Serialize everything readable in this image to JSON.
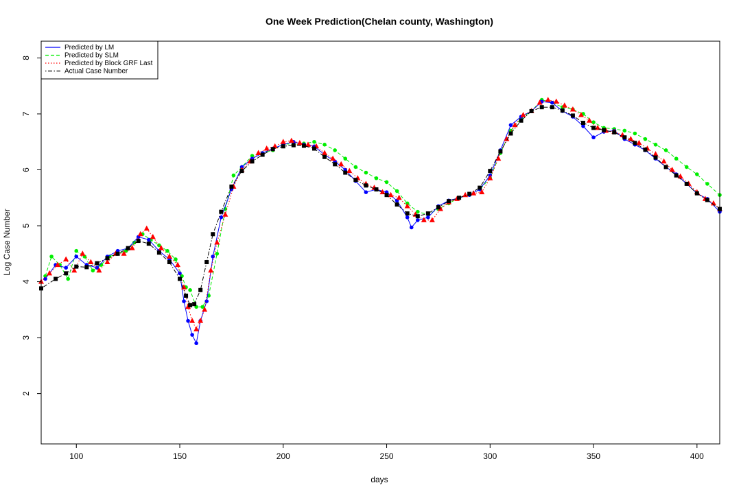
{
  "chart_data": {
    "type": "line",
    "title": "One Week Prediction(Chelan county, Washington)",
    "xlabel": "days",
    "ylabel": "Log Case Number",
    "xlim": [
      83,
      411
    ],
    "ylim": [
      1.1,
      8.3
    ],
    "xticks": [
      100,
      150,
      200,
      250,
      300,
      350,
      400
    ],
    "yticks": [
      2,
      3,
      4,
      5,
      6,
      7,
      8
    ],
    "grid": false,
    "legend_position": "top-left",
    "legend": [
      {
        "label": "Predicted by LM",
        "color": "#0000ff",
        "line": "solid"
      },
      {
        "label": "Predicted by SLM",
        "color": "#00ee00",
        "line": "dashed"
      },
      {
        "label": "Predicted by Block GRF Last",
        "color": "#ff0000",
        "line": "dotted"
      },
      {
        "label": "Actual Case Number",
        "color": "#000000",
        "line": "dotdash"
      }
    ],
    "series": [
      {
        "name": "Actual Case Number",
        "color": "#000000",
        "marker": "square",
        "x": [
          83,
          90,
          95,
          100,
          105,
          110,
          115,
          120,
          125,
          130,
          135,
          140,
          145,
          150,
          153,
          155,
          157,
          160,
          163,
          166,
          170,
          175,
          180,
          185,
          190,
          195,
          200,
          205,
          210,
          215,
          220,
          225,
          230,
          235,
          240,
          245,
          250,
          255,
          260,
          265,
          270,
          275,
          280,
          285,
          290,
          295,
          300,
          305,
          310,
          315,
          320,
          325,
          330,
          335,
          340,
          345,
          350,
          355,
          360,
          365,
          370,
          375,
          380,
          385,
          390,
          395,
          400,
          405,
          411
        ],
        "y": [
          3.88,
          4.05,
          4.15,
          4.27,
          4.26,
          4.33,
          4.42,
          4.5,
          4.6,
          4.73,
          4.68,
          4.52,
          4.35,
          4.05,
          3.75,
          3.58,
          3.6,
          3.85,
          4.35,
          4.85,
          5.25,
          5.7,
          5.98,
          6.15,
          6.27,
          6.37,
          6.42,
          6.44,
          6.43,
          6.38,
          6.23,
          6.1,
          5.95,
          5.82,
          5.72,
          5.65,
          5.55,
          5.38,
          5.22,
          5.17,
          5.22,
          5.33,
          5.44,
          5.5,
          5.57,
          5.68,
          5.98,
          6.33,
          6.65,
          6.88,
          7.05,
          7.12,
          7.12,
          7.06,
          6.97,
          6.84,
          6.75,
          6.71,
          6.67,
          6.58,
          6.48,
          6.36,
          6.22,
          6.05,
          5.9,
          5.75,
          5.58,
          5.46,
          5.3
        ]
      },
      {
        "name": "Predicted by LM",
        "color": "#0000ff",
        "marker": "circle",
        "x": [
          85,
          90,
          95,
          100,
          105,
          110,
          115,
          120,
          125,
          130,
          135,
          140,
          145,
          150,
          152,
          154,
          156,
          158,
          160,
          163,
          166,
          170,
          175,
          180,
          185,
          190,
          195,
          200,
          205,
          210,
          215,
          220,
          225,
          230,
          235,
          240,
          245,
          250,
          255,
          260,
          262,
          265,
          270,
          275,
          280,
          285,
          290,
          295,
          300,
          305,
          310,
          315,
          320,
          325,
          330,
          335,
          340,
          345,
          350,
          355,
          360,
          365,
          370,
          375,
          380,
          385,
          390,
          395,
          400,
          405,
          411
        ],
        "y": [
          4.05,
          4.3,
          4.25,
          4.45,
          4.3,
          4.25,
          4.45,
          4.55,
          4.6,
          4.8,
          4.75,
          4.55,
          4.4,
          4.15,
          3.65,
          3.3,
          3.05,
          2.9,
          3.3,
          3.65,
          4.45,
          5.15,
          5.65,
          6.05,
          6.2,
          6.3,
          6.38,
          6.45,
          6.5,
          6.45,
          6.42,
          6.27,
          6.15,
          6.0,
          5.8,
          5.6,
          5.65,
          5.6,
          5.45,
          5.15,
          4.97,
          5.1,
          5.15,
          5.35,
          5.45,
          5.5,
          5.55,
          5.65,
          5.9,
          6.35,
          6.8,
          6.95,
          7.05,
          7.22,
          7.2,
          7.05,
          6.95,
          6.78,
          6.58,
          6.68,
          6.7,
          6.55,
          6.45,
          6.35,
          6.2,
          6.05,
          5.92,
          5.75,
          5.58,
          5.48,
          5.25
        ]
      },
      {
        "name": "Predicted by SLM",
        "color": "#00ee00",
        "marker": "circle",
        "x": [
          85,
          88,
          92,
          96,
          100,
          104,
          108,
          112,
          116,
          120,
          124,
          128,
          132,
          136,
          140,
          144,
          148,
          151,
          153,
          155,
          158,
          161,
          164,
          168,
          172,
          176,
          180,
          185,
          190,
          195,
          200,
          205,
          210,
          215,
          220,
          225,
          230,
          235,
          240,
          245,
          250,
          255,
          260,
          265,
          270,
          275,
          280,
          285,
          290,
          295,
          300,
          305,
          310,
          315,
          320,
          325,
          330,
          335,
          340,
          345,
          350,
          355,
          360,
          365,
          370,
          375,
          380,
          385,
          390,
          395,
          400,
          405,
          411
        ],
        "y": [
          4.1,
          4.45,
          4.3,
          4.05,
          4.55,
          4.45,
          4.2,
          4.3,
          4.45,
          4.5,
          4.55,
          4.7,
          4.85,
          4.75,
          4.65,
          4.55,
          4.4,
          4.1,
          3.9,
          3.85,
          3.55,
          3.55,
          3.75,
          4.5,
          5.3,
          5.9,
          6.05,
          6.25,
          6.3,
          6.35,
          6.47,
          6.45,
          6.47,
          6.5,
          6.45,
          6.35,
          6.2,
          6.05,
          5.95,
          5.85,
          5.78,
          5.62,
          5.4,
          5.25,
          5.2,
          5.3,
          5.4,
          5.5,
          5.55,
          5.65,
          5.85,
          6.3,
          6.7,
          6.92,
          7.05,
          7.25,
          7.2,
          7.12,
          7.08,
          7.0,
          6.85,
          6.75,
          6.73,
          6.7,
          6.65,
          6.55,
          6.45,
          6.35,
          6.2,
          6.05,
          5.92,
          5.75,
          5.55
        ]
      },
      {
        "name": "Predicted by Block GRF Last",
        "color": "#ff0000",
        "marker": "triangle",
        "x": [
          83,
          87,
          91,
          95,
          99,
          103,
          107,
          111,
          115,
          119,
          123,
          127,
          131,
          134,
          137,
          141,
          145,
          149,
          152,
          154,
          156,
          158,
          160,
          162,
          165,
          168,
          172,
          176,
          180,
          184,
          188,
          192,
          196,
          200,
          204,
          208,
          212,
          216,
          220,
          224,
          228,
          232,
          236,
          240,
          244,
          248,
          252,
          256,
          260,
          264,
          268,
          272,
          276,
          280,
          284,
          288,
          292,
          296,
          300,
          304,
          308,
          312,
          316,
          320,
          324,
          328,
          332,
          336,
          340,
          344,
          348,
          352,
          356,
          360,
          364,
          368,
          372,
          376,
          380,
          384,
          388,
          392,
          396,
          400,
          404,
          408,
          411
        ],
        "y": [
          4.0,
          4.15,
          4.3,
          4.4,
          4.2,
          4.5,
          4.35,
          4.2,
          4.35,
          4.5,
          4.5,
          4.6,
          4.85,
          4.95,
          4.8,
          4.6,
          4.45,
          4.3,
          3.9,
          3.55,
          3.3,
          3.15,
          3.3,
          3.5,
          4.2,
          4.7,
          5.2,
          5.7,
          6.0,
          6.15,
          6.3,
          6.38,
          6.42,
          6.5,
          6.52,
          6.48,
          6.45,
          6.42,
          6.3,
          6.2,
          6.1,
          5.98,
          5.85,
          5.75,
          5.68,
          5.6,
          5.55,
          5.5,
          5.35,
          5.2,
          5.1,
          5.1,
          5.3,
          5.42,
          5.48,
          5.55,
          5.58,
          5.6,
          5.85,
          6.2,
          6.55,
          6.8,
          6.98,
          7.05,
          7.2,
          7.25,
          7.22,
          7.15,
          7.08,
          6.98,
          6.88,
          6.75,
          6.7,
          6.68,
          6.62,
          6.55,
          6.48,
          6.38,
          6.28,
          6.15,
          6.0,
          5.88,
          5.75,
          5.6,
          5.48,
          5.4,
          5.3
        ]
      }
    ]
  }
}
